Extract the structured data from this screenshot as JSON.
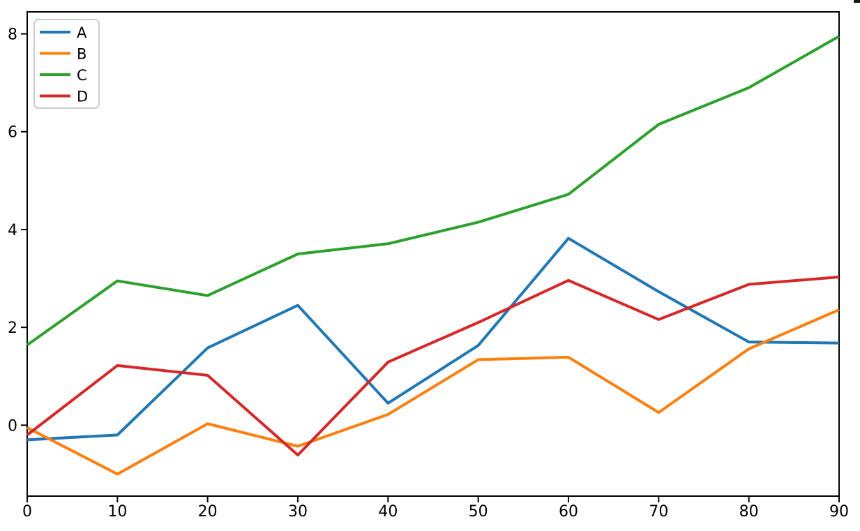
{
  "figure": {
    "background_color": "#ffffff",
    "axis_color": "#000000",
    "legend": {
      "position": "upper left",
      "border_color": "#cccccc",
      "fill_color": "#ffffff"
    }
  },
  "chart_data": {
    "type": "line",
    "title": "",
    "xlabel": "",
    "ylabel": "",
    "grid": false,
    "x": [
      0,
      10,
      20,
      30,
      40,
      50,
      60,
      70,
      80,
      90
    ],
    "x_ticks": [
      "0",
      "10",
      "20",
      "30",
      "40",
      "50",
      "60",
      "70",
      "80",
      "90"
    ],
    "y_ticks": [
      "0",
      "2",
      "4",
      "6",
      "8"
    ],
    "y_tick_values": [
      0,
      2,
      4,
      6,
      8
    ],
    "xlim": [
      0,
      90
    ],
    "ylim": [
      -1.45,
      8.45
    ],
    "legend_position": "upper left",
    "series": [
      {
        "name": "A",
        "color": "#1f77b4",
        "values": [
          -0.3,
          -0.2,
          1.58,
          2.45,
          0.45,
          1.63,
          3.82,
          2.73,
          1.7,
          1.68
        ]
      },
      {
        "name": "B",
        "color": "#ff7f0e",
        "values": [
          -0.05,
          -1.0,
          0.03,
          -0.43,
          0.22,
          1.34,
          1.39,
          0.26,
          1.56,
          2.36
        ]
      },
      {
        "name": "C",
        "color": "#2ca02c",
        "values": [
          1.64,
          2.95,
          2.65,
          3.5,
          3.71,
          4.15,
          4.72,
          6.15,
          6.9,
          7.95
        ]
      },
      {
        "name": "D",
        "color": "#d62728",
        "values": [
          -0.2,
          1.22,
          1.02,
          -0.61,
          1.29,
          2.1,
          2.96,
          2.16,
          2.88,
          3.03
        ]
      }
    ]
  }
}
